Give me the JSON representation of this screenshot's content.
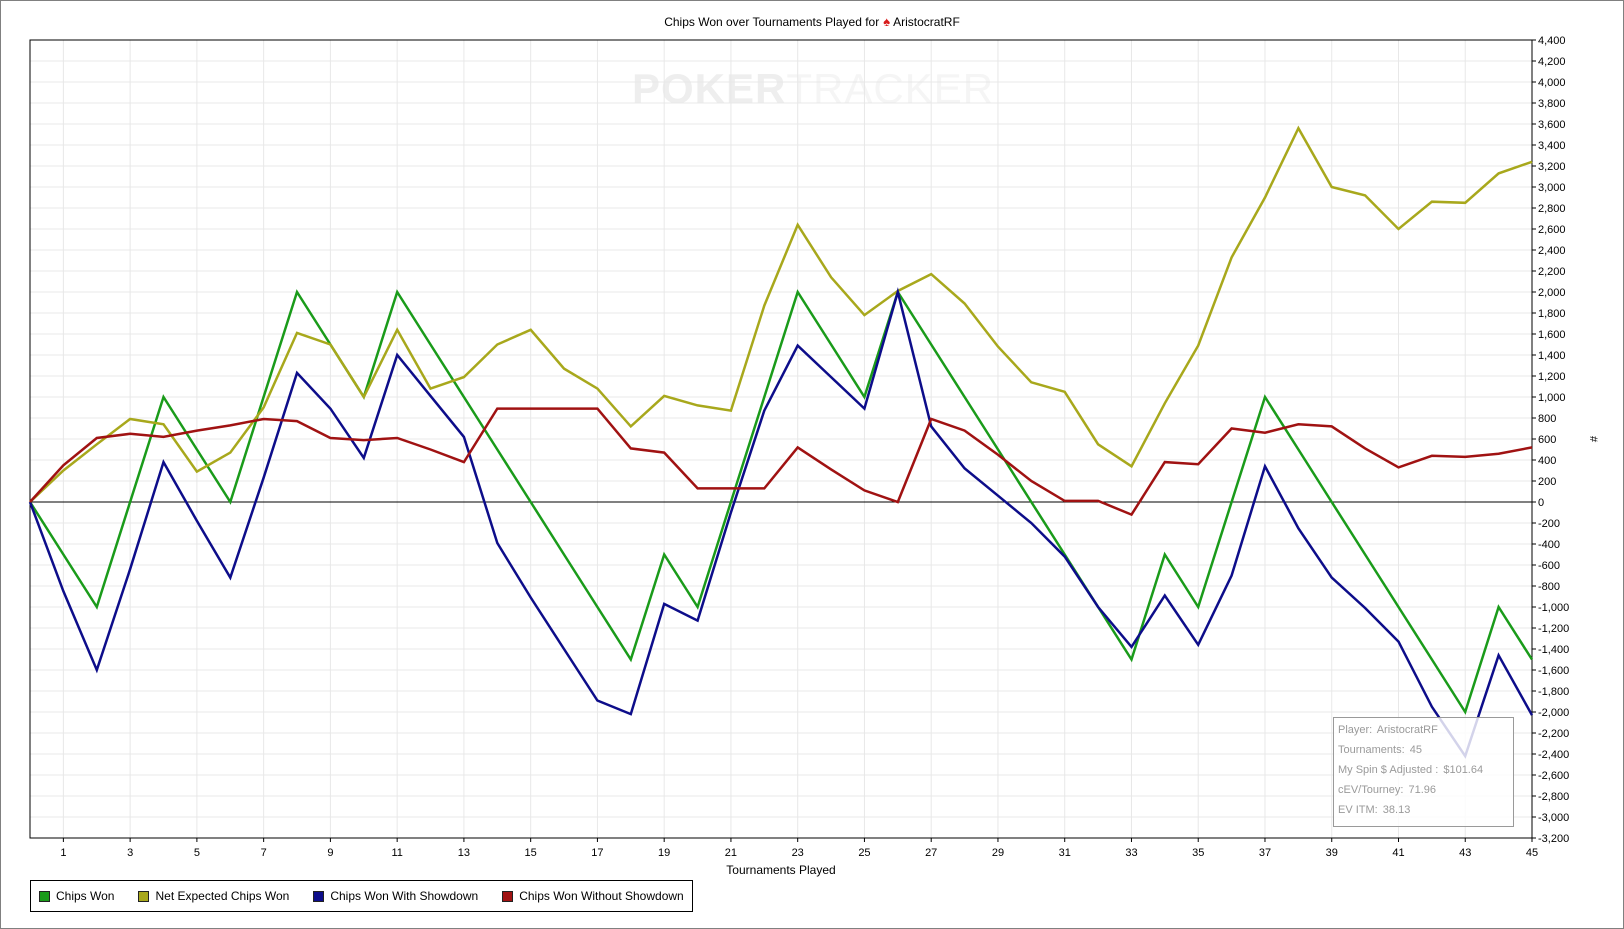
{
  "title": {
    "prefix": "Chips Won over Tournaments Played for",
    "player": "AristocratRF",
    "spade_icon": "spade-icon",
    "spade_color": "#d81b1b"
  },
  "watermark": {
    "text_dark": "POKER",
    "text_light": "TRACKER"
  },
  "info_box": {
    "lines": [
      {
        "key": "Player:",
        "value": "AristocratRF"
      },
      {
        "key": "Tournaments:",
        "value": "45"
      },
      {
        "key": "My Spin $ Adjusted :",
        "value": "$101.64"
      },
      {
        "key": "cEV/Tourney:",
        "value": "71.96"
      },
      {
        "key": "EV ITM:",
        "value": "38.13"
      }
    ]
  },
  "chart_data": {
    "type": "line",
    "xlabel": "Tournaments Played",
    "ylabel": "#",
    "xlim": [
      0,
      45
    ],
    "ylim": [
      -3200,
      4400
    ],
    "x_ticks": [
      1,
      3,
      5,
      7,
      9,
      11,
      13,
      15,
      17,
      19,
      21,
      23,
      25,
      27,
      29,
      31,
      33,
      35,
      37,
      39,
      41,
      43,
      45
    ],
    "y_ticks": [
      4400,
      4200,
      4000,
      3800,
      3600,
      3400,
      3200,
      3000,
      2800,
      2600,
      2400,
      2200,
      2000,
      1800,
      1600,
      1400,
      1200,
      1000,
      800,
      600,
      400,
      200,
      0,
      -200,
      -400,
      -600,
      -800,
      -1000,
      -1200,
      -1400,
      -1600,
      -1800,
      -2000,
      -2200,
      -2400,
      -2600,
      -2800,
      -3000,
      -3200
    ],
    "grid": true,
    "legend_position": "bottom-left",
    "x": [
      0,
      1,
      2,
      3,
      4,
      5,
      6,
      7,
      8,
      9,
      10,
      11,
      12,
      13,
      14,
      15,
      16,
      17,
      18,
      19,
      20,
      21,
      22,
      23,
      24,
      25,
      26,
      27,
      28,
      29,
      30,
      31,
      32,
      33,
      34,
      35,
      36,
      37,
      38,
      39,
      40,
      41,
      42,
      43,
      44,
      45
    ],
    "series": [
      {
        "name": "Chips Won",
        "color": "#1a9b1a",
        "values": [
          0,
          -500,
          -1000,
          0,
          1000,
          500,
          0,
          1000,
          2000,
          1500,
          1000,
          2000,
          1500,
          1000,
          500,
          0,
          -500,
          -1000,
          -1500,
          -500,
          -1000,
          0,
          1000,
          2000,
          1500,
          1000,
          2000,
          1500,
          1000,
          500,
          0,
          -500,
          -1000,
          -1500,
          -500,
          -1000,
          0,
          1000,
          500,
          0,
          -500,
          -1000,
          -1500,
          -2000,
          -1000,
          -1500
        ]
      },
      {
        "name": "Net Expected Chips Won",
        "color": "#a8a81c",
        "values": [
          0,
          300,
          550,
          790,
          740,
          290,
          470,
          900,
          1610,
          1500,
          1000,
          1640,
          1080,
          1190,
          1500,
          1640,
          1270,
          1080,
          720,
          1010,
          920,
          870,
          1870,
          2640,
          2140,
          1780,
          2010,
          2170,
          1890,
          1480,
          1140,
          1050,
          550,
          340,
          940,
          1490,
          2330,
          2900,
          3560,
          3000,
          2920,
          2600,
          2860,
          2850,
          3130,
          3240
        ]
      },
      {
        "name": "Chips Won With Showdown",
        "color": "#0d0d8a",
        "values": [
          0,
          -850,
          -1600,
          -640,
          380,
          -180,
          -720,
          230,
          1230,
          890,
          420,
          1400,
          1010,
          620,
          -390,
          -910,
          -1400,
          -1890,
          -2020,
          -970,
          -1130,
          -100,
          870,
          1490,
          1190,
          890,
          2000,
          720,
          320,
          60,
          -200,
          -520,
          -1000,
          -1380,
          -890,
          -1360,
          -700,
          340,
          -250,
          -720,
          -1010,
          -1330,
          -1950,
          -2420,
          -1460,
          -2030
        ]
      },
      {
        "name": "Chips Won Without Showdown",
        "color": "#a01212",
        "values": [
          0,
          350,
          610,
          650,
          620,
          680,
          730,
          790,
          770,
          610,
          590,
          610,
          500,
          380,
          890,
          890,
          890,
          890,
          510,
          470,
          130,
          130,
          130,
          520,
          310,
          110,
          0,
          790,
          680,
          450,
          200,
          10,
          10,
          -120,
          380,
          360,
          700,
          660,
          740,
          720,
          510,
          330,
          440,
          430,
          460,
          520
        ]
      }
    ]
  }
}
